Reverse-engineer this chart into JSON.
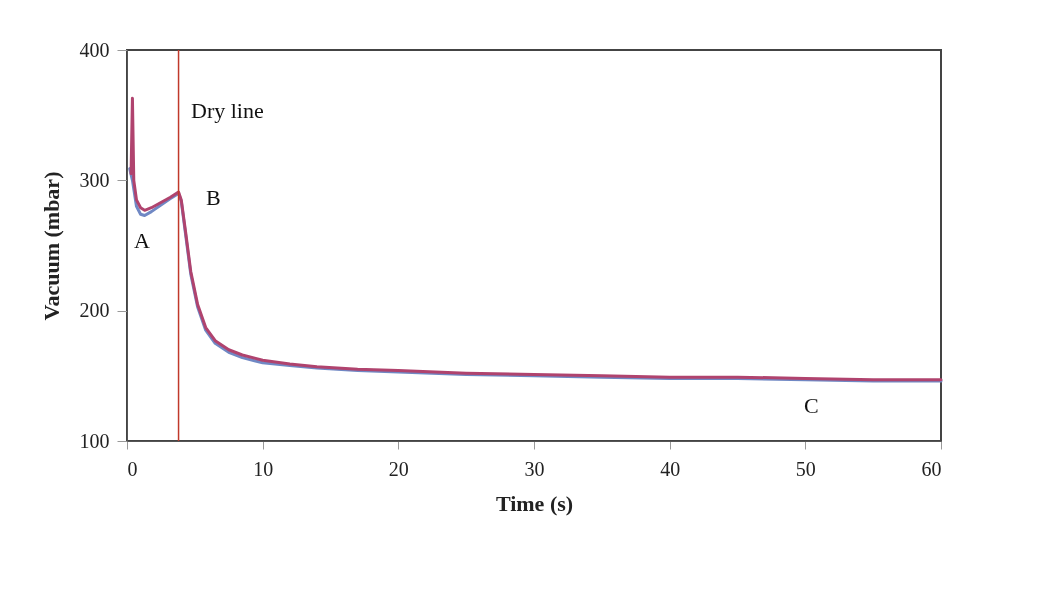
{
  "chart_data": {
    "type": "line",
    "xlabel": "Time (s)",
    "ylabel": "Vacuum (mbar)",
    "xlim": [
      0,
      60
    ],
    "xticks": [
      0,
      10,
      20,
      30,
      40,
      50,
      60
    ],
    "ylim": [
      100,
      400
    ],
    "yticks": [
      100,
      200,
      300,
      400
    ],
    "grid": false,
    "marker": "none",
    "line_style": "solid",
    "series": [
      {
        "color": "#7088c4",
        "x": [
          0.2,
          0.4,
          0.7,
          1.0,
          1.3,
          1.8,
          2.5,
          3.2,
          3.8,
          4.0,
          4.3,
          4.7,
          5.2,
          5.8,
          6.5,
          7.5,
          8.5,
          10,
          12,
          14,
          17,
          20,
          25,
          30,
          35,
          40,
          45,
          50,
          55,
          60
        ],
        "values": [
          309,
          300,
          280,
          274,
          273,
          276,
          281,
          286,
          290,
          284,
          260,
          228,
          203,
          185,
          175,
          168,
          164,
          160,
          158,
          156,
          154,
          153,
          151,
          150,
          149,
          148,
          148,
          147,
          146,
          146
        ]
      },
      {
        "color": "#b0436e",
        "x": [
          0.3,
          0.4,
          0.5,
          0.7,
          1.0,
          1.3,
          1.8,
          2.5,
          3.2,
          3.8,
          4.0,
          4.3,
          4.7,
          5.2,
          5.8,
          6.5,
          7.5,
          8.5,
          10,
          12,
          14,
          17,
          20,
          25,
          30,
          35,
          40,
          45,
          50,
          55,
          60
        ],
        "values": [
          305,
          363,
          300,
          285,
          279,
          277,
          279,
          283,
          287,
          291,
          285,
          262,
          230,
          205,
          187,
          177,
          170,
          166,
          162,
          159,
          157,
          155,
          154,
          152,
          151,
          150,
          149,
          149,
          148,
          147,
          147
        ]
      }
    ],
    "ref_lines": [
      {
        "axis": "x",
        "value": 3.8,
        "color": "#c0392b",
        "line_style": "solid"
      }
    ],
    "annotations": [
      "Dry line",
      "A",
      "B",
      "C"
    ]
  }
}
